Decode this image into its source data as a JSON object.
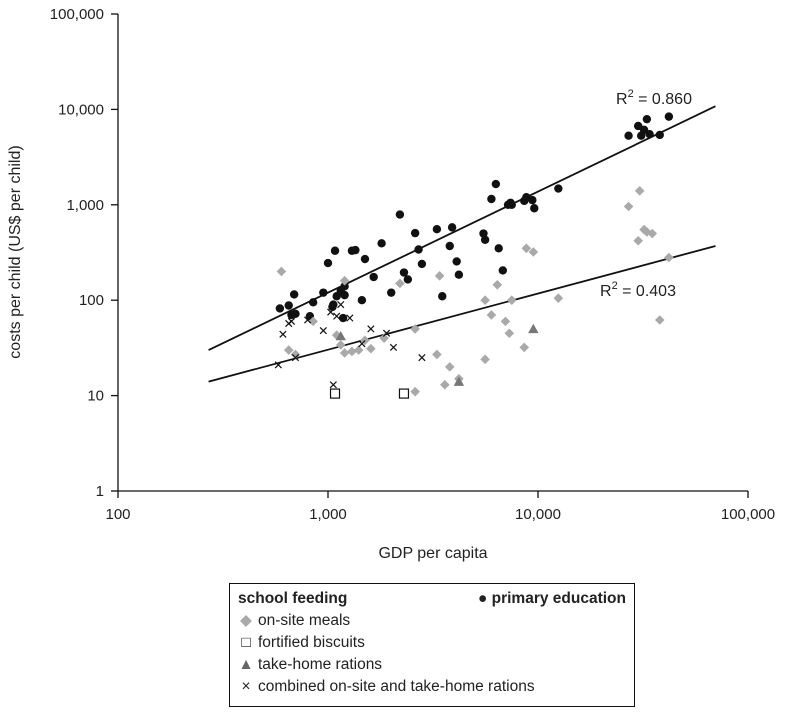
{
  "chart_data": {
    "type": "scatter",
    "xscale": "log",
    "yscale": "log",
    "xlim": [
      100,
      100000
    ],
    "ylim": [
      1,
      100000
    ],
    "xticks": [
      100,
      1000,
      10000,
      100000
    ],
    "yticks": [
      1,
      10,
      100,
      1000,
      10000,
      100000
    ],
    "xtick_labels": [
      "100",
      "1,000",
      "10,000",
      "100,000"
    ],
    "ytick_labels": [
      "1",
      "10",
      "100",
      "1,000",
      "10,000",
      "100,000"
    ],
    "xlabel": "GDP per capita",
    "ylabel": "costs per child (US$ per child)",
    "grid": false,
    "legend_position": "bottom",
    "series": [
      {
        "name": "primary education",
        "group": "primary education",
        "marker": "circle",
        "color": "#111111",
        "points": [
          [
            590,
            82
          ],
          [
            650,
            88
          ],
          [
            670,
            70
          ],
          [
            690,
            115
          ],
          [
            700,
            72
          ],
          [
            820,
            68
          ],
          [
            850,
            95
          ],
          [
            950,
            120
          ],
          [
            1000,
            245
          ],
          [
            1050,
            85
          ],
          [
            1060,
            90
          ],
          [
            1080,
            330
          ],
          [
            1100,
            110
          ],
          [
            1150,
            125
          ],
          [
            1180,
            65
          ],
          [
            1200,
            113
          ],
          [
            1200,
            140
          ],
          [
            1300,
            330
          ],
          [
            1350,
            335
          ],
          [
            1450,
            100
          ],
          [
            1500,
            270
          ],
          [
            1650,
            175
          ],
          [
            1800,
            395
          ],
          [
            2000,
            120
          ],
          [
            2200,
            790
          ],
          [
            2300,
            195
          ],
          [
            2400,
            165
          ],
          [
            2600,
            505
          ],
          [
            2700,
            340
          ],
          [
            2800,
            240
          ],
          [
            3300,
            555
          ],
          [
            3500,
            110
          ],
          [
            3800,
            370
          ],
          [
            3900,
            580
          ],
          [
            4100,
            255
          ],
          [
            4200,
            185
          ],
          [
            5500,
            500
          ],
          [
            5600,
            430
          ],
          [
            6000,
            1150
          ],
          [
            6300,
            1650
          ],
          [
            6500,
            350
          ],
          [
            6800,
            205
          ],
          [
            7200,
            1000
          ],
          [
            7400,
            1050
          ],
          [
            7500,
            1000
          ],
          [
            8600,
            1100
          ],
          [
            8800,
            1200
          ],
          [
            9400,
            1120
          ],
          [
            9600,
            920
          ],
          [
            12500,
            1480
          ],
          [
            27000,
            5300
          ],
          [
            30000,
            6700
          ],
          [
            31000,
            5300
          ],
          [
            32000,
            6100
          ],
          [
            33000,
            7900
          ],
          [
            34000,
            5500
          ],
          [
            38000,
            5400
          ],
          [
            42000,
            8400
          ]
        ]
      },
      {
        "name": "on-site meals",
        "group": "school feeding",
        "marker": "diamond",
        "color": "#a9a9a9",
        "points": [
          [
            600,
            200
          ],
          [
            650,
            30
          ],
          [
            700,
            27
          ],
          [
            850,
            60
          ],
          [
            1100,
            43
          ],
          [
            1150,
            34
          ],
          [
            1200,
            28
          ],
          [
            1200,
            160
          ],
          [
            1300,
            29
          ],
          [
            1400,
            30
          ],
          [
            1500,
            38
          ],
          [
            1600,
            31
          ],
          [
            1850,
            40
          ],
          [
            2200,
            150
          ],
          [
            2600,
            11
          ],
          [
            2600,
            50
          ],
          [
            3300,
            27
          ],
          [
            3400,
            180
          ],
          [
            3600,
            13
          ],
          [
            3800,
            20
          ],
          [
            4200,
            15
          ],
          [
            5600,
            24
          ],
          [
            5600,
            100
          ],
          [
            6000,
            70
          ],
          [
            6400,
            145
          ],
          [
            7000,
            60
          ],
          [
            7300,
            45
          ],
          [
            7500,
            100
          ],
          [
            8600,
            32
          ],
          [
            8800,
            350
          ],
          [
            9500,
            320
          ],
          [
            12500,
            105
          ],
          [
            27000,
            960
          ],
          [
            30000,
            420
          ],
          [
            30500,
            1400
          ],
          [
            32000,
            550
          ],
          [
            33000,
            520
          ],
          [
            35000,
            500
          ],
          [
            38000,
            62
          ],
          [
            42000,
            280
          ]
        ]
      },
      {
        "name": "fortified biscuits",
        "group": "school feeding",
        "marker": "square-open",
        "color": "#111111",
        "points": [
          [
            1080,
            10.5
          ],
          [
            2300,
            10.5
          ]
        ]
      },
      {
        "name": "take-home rations",
        "group": "school feeding",
        "marker": "triangle",
        "color": "#777777",
        "points": [
          [
            1150,
            42
          ],
          [
            4200,
            14
          ],
          [
            9500,
            50
          ]
        ]
      },
      {
        "name": "combined on-site and take-home rations",
        "group": "school feeding",
        "marker": "x",
        "color": "#111111",
        "points": [
          [
            580,
            21
          ],
          [
            610,
            44
          ],
          [
            650,
            57
          ],
          [
            670,
            60
          ],
          [
            700,
            25
          ],
          [
            800,
            62
          ],
          [
            950,
            48
          ],
          [
            1030,
            75
          ],
          [
            1060,
            13
          ],
          [
            1100,
            68
          ],
          [
            1150,
            90
          ],
          [
            1270,
            65
          ],
          [
            1450,
            35
          ],
          [
            1600,
            50
          ],
          [
            1900,
            45
          ],
          [
            2050,
            32
          ],
          [
            2800,
            25
          ]
        ]
      }
    ],
    "trendlines": [
      {
        "label": "R² = 0.860",
        "r2_text": "0.860",
        "from": [
          270,
          30
        ],
        "to": [
          70000,
          10800
        ]
      },
      {
        "label": "R² = 0.403",
        "r2_text": "0.403",
        "from": [
          270,
          14
        ],
        "to": [
          70000,
          370
        ]
      }
    ],
    "legend": {
      "heading_left": "school feeding",
      "heading_right": "primary education",
      "items": [
        "on-site meals",
        "fortified biscuits",
        "take-home rations",
        "combined on-site and take-home rations"
      ]
    }
  }
}
